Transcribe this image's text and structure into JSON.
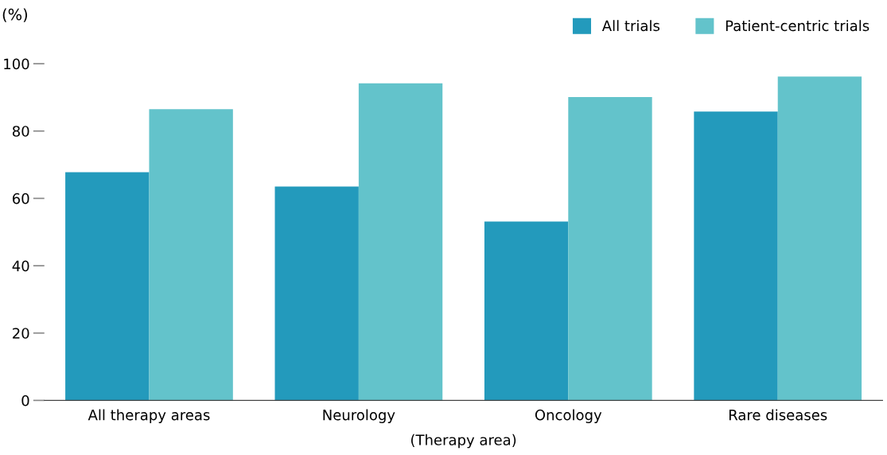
{
  "chart_data": {
    "type": "bar",
    "ylabel": "(%)",
    "xlabel": "(Therapy area)",
    "categories": [
      "All therapy areas",
      "Neurology",
      "Oncology",
      "Rare diseases"
    ],
    "series": [
      {
        "name": "All trials",
        "color": "#239abc",
        "values": [
          67.8,
          63.5,
          53.1,
          85.8
        ]
      },
      {
        "name": "Patient-centric trials",
        "color": "#63c3cb",
        "values": [
          86.5,
          94.2,
          90.1,
          96.2
        ]
      }
    ],
    "ylim": [
      0,
      100
    ],
    "yticks": [
      0,
      20,
      40,
      60,
      80,
      100
    ],
    "legend": "top right",
    "grid": false
  }
}
